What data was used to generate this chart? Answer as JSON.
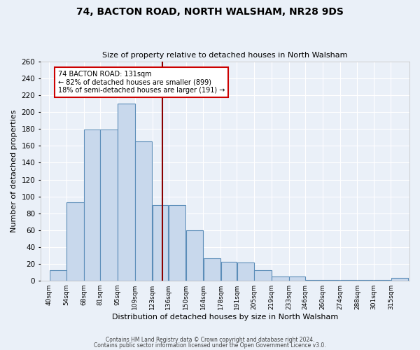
{
  "title": "74, BACTON ROAD, NORTH WALSHAM, NR28 9DS",
  "subtitle": "Size of property relative to detached houses in North Walsham",
  "xlabel": "Distribution of detached houses by size in North Walsham",
  "ylabel": "Number of detached properties",
  "bin_labels": [
    "40sqm",
    "54sqm",
    "68sqm",
    "81sqm",
    "95sqm",
    "109sqm",
    "123sqm",
    "136sqm",
    "150sqm",
    "164sqm",
    "178sqm",
    "191sqm",
    "205sqm",
    "219sqm",
    "233sqm",
    "246sqm",
    "260sqm",
    "274sqm",
    "288sqm",
    "301sqm",
    "315sqm"
  ],
  "bar_values": [
    13,
    93,
    179,
    179,
    210,
    165,
    90,
    90,
    60,
    27,
    23,
    22,
    13,
    5,
    5,
    1,
    1,
    1,
    1,
    1,
    4
  ],
  "bar_left_edges": [
    40,
    54,
    68,
    81,
    95,
    109,
    123,
    136,
    150,
    164,
    178,
    191,
    205,
    219,
    233,
    246,
    260,
    274,
    288,
    301,
    315
  ],
  "bin_widths": [
    14,
    14,
    13,
    14,
    14,
    14,
    13,
    14,
    14,
    14,
    13,
    14,
    14,
    14,
    13,
    14,
    14,
    14,
    13,
    14,
    14
  ],
  "property_value": 131,
  "annotation_line1": "74 BACTON ROAD: 131sqm",
  "annotation_line2": "← 82% of detached houses are smaller (899)",
  "annotation_line3": "18% of semi-detached houses are larger (191) →",
  "vline_color": "#8B0000",
  "bar_fill_color": "#C8D8EC",
  "bar_edge_color": "#5B8DB8",
  "background_color": "#EAF0F8",
  "annotation_box_facecolor": "#FFFFFF",
  "annotation_box_edgecolor": "#CC0000",
  "ylim": [
    0,
    260
  ],
  "yticks": [
    0,
    20,
    40,
    60,
    80,
    100,
    120,
    140,
    160,
    180,
    200,
    220,
    240,
    260
  ],
  "xlim_left": 33,
  "xlim_right": 330,
  "footer_line1": "Contains HM Land Registry data © Crown copyright and database right 2024.",
  "footer_line2": "Contains public sector information licensed under the Open Government Licence v3.0."
}
